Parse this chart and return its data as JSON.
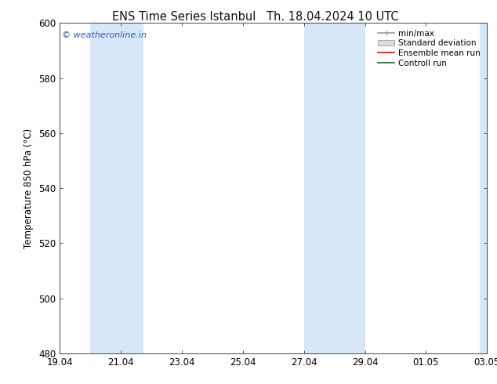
{
  "title_left": "ENS Time Series Istanbul",
  "title_right": "Th. 18.04.2024 10 UTC",
  "ylabel": "Temperature 850 hPa (°C)",
  "ylim": [
    480,
    600
  ],
  "yticks": [
    480,
    500,
    520,
    540,
    560,
    580,
    600
  ],
  "xtick_positions": [
    0,
    2,
    4,
    6,
    8,
    10,
    12,
    14
  ],
  "xtick_labels": [
    "19.04",
    "21.04",
    "23.04",
    "25.04",
    "27.04",
    "29.04",
    "01.05",
    "03.05"
  ],
  "xlim": [
    0,
    14
  ],
  "shaded_bands": [
    {
      "xmin": 1.0,
      "xmax": 2.75
    },
    {
      "xmin": 8.0,
      "xmax": 10.0
    },
    {
      "xmin": 13.75,
      "xmax": 14.0
    }
  ],
  "shade_color": "#d6e8f8",
  "watermark_text": "© weatheronline.in",
  "watermark_color": "#3355bb",
  "legend_labels": [
    "min/max",
    "Standard deviation",
    "Ensemble mean run",
    "Controll run"
  ],
  "legend_colors": [
    "#aaaaaa",
    "#cccccc",
    "#ff0000",
    "#007700"
  ],
  "background_color": "#ffffff",
  "title_fontsize": 10.5,
  "axis_label_fontsize": 8.5,
  "tick_fontsize": 8.5,
  "legend_fontsize": 7.5
}
